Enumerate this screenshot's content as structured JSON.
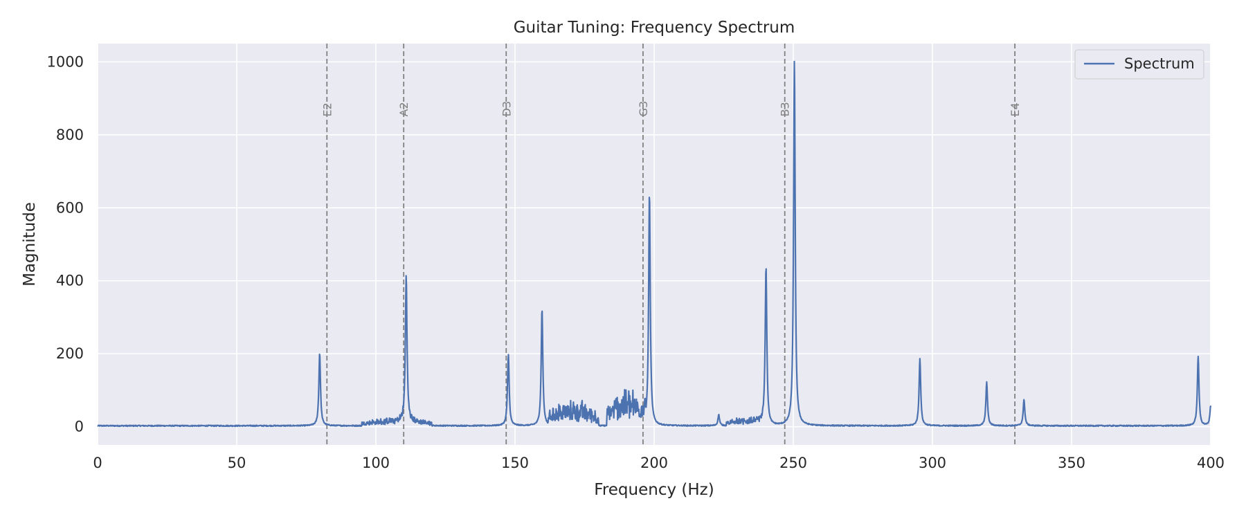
{
  "chart_data": {
    "type": "line",
    "title": "Guitar Tuning: Frequency Spectrum",
    "xlabel": "Frequency (Hz)",
    "ylabel": "Magnitude",
    "xlim": [
      0,
      400
    ],
    "ylim": [
      -50,
      1050
    ],
    "xticks": [
      0,
      50,
      100,
      150,
      200,
      250,
      300,
      350,
      400
    ],
    "yticks": [
      0,
      200,
      400,
      600,
      800,
      1000
    ],
    "grid": true,
    "legend": {
      "placement": "top-right",
      "entries": [
        "Spectrum"
      ]
    },
    "colors": {
      "series": "#4c72b0",
      "background": "#eaeaf2",
      "grid": "#ffffff",
      "reference": "#808080"
    },
    "reference_lines": [
      {
        "label": "E2",
        "x": 82.41
      },
      {
        "label": "A2",
        "x": 110.0
      },
      {
        "label": "D3",
        "x": 146.83
      },
      {
        "label": "G3",
        "x": 196.0
      },
      {
        "label": "B3",
        "x": 246.94
      },
      {
        "label": "E4",
        "x": 329.63
      }
    ],
    "series": [
      {
        "name": "Spectrum",
        "peaks": [
          {
            "x": 79.8,
            "y": 200
          },
          {
            "x": 110.9,
            "y": 405
          },
          {
            "x": 147.6,
            "y": 195
          },
          {
            "x": 159.7,
            "y": 320
          },
          {
            "x": 198.3,
            "y": 640
          },
          {
            "x": 223.2,
            "y": 30
          },
          {
            "x": 240.2,
            "y": 437
          },
          {
            "x": 250.4,
            "y": 1003
          },
          {
            "x": 295.5,
            "y": 185
          },
          {
            "x": 319.5,
            "y": 120
          },
          {
            "x": 332.9,
            "y": 72
          },
          {
            "x": 395.5,
            "y": 190
          },
          {
            "x": 400.0,
            "y": 55
          }
        ],
        "noise_regions": [
          {
            "x": [
              95,
              120
            ],
            "level": 15
          },
          {
            "x": [
              162,
              180
            ],
            "level": 50
          },
          {
            "x": [
              183,
              197
            ],
            "level": 70
          },
          {
            "x": [
              226,
              240
            ],
            "level": 15
          }
        ]
      }
    ]
  }
}
